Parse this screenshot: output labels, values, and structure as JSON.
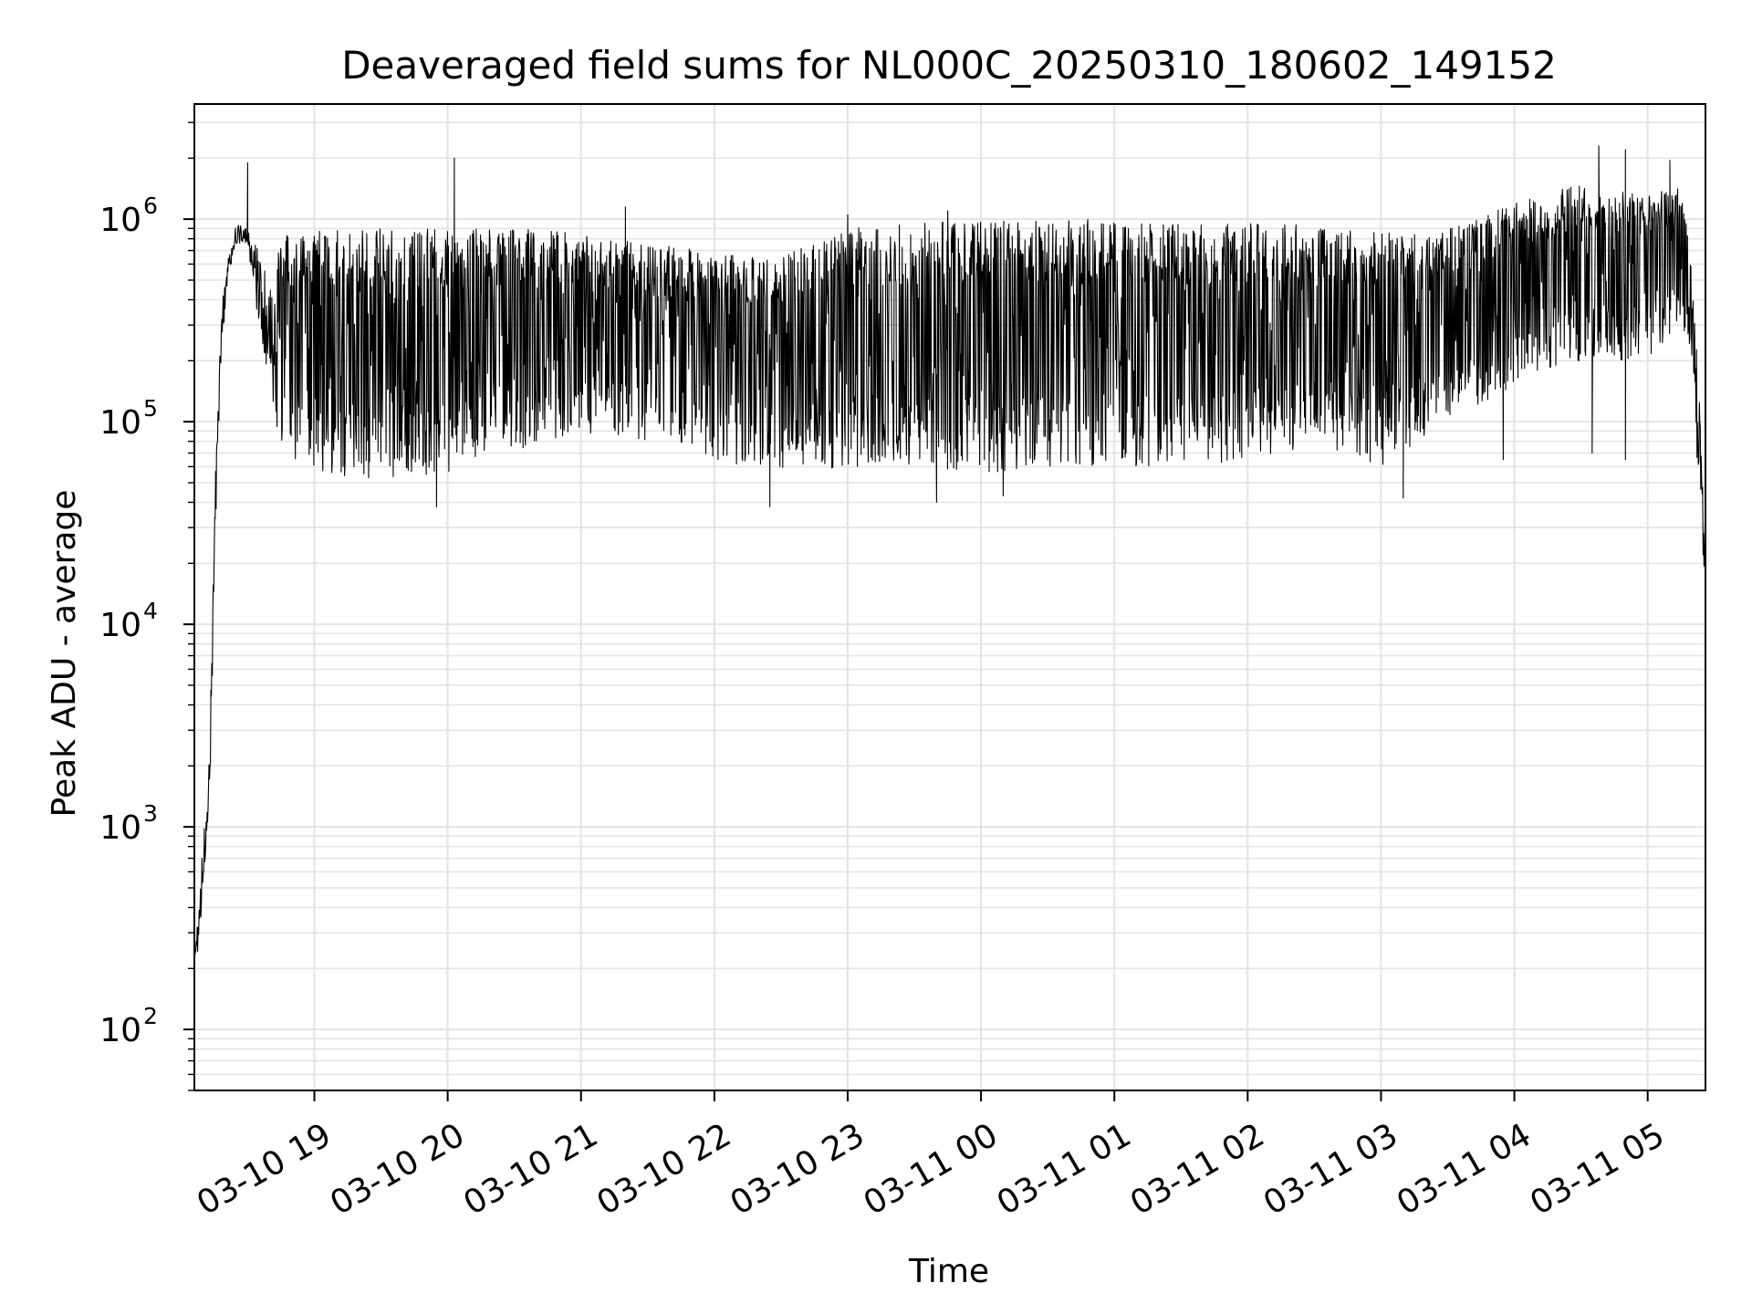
{
  "chart_data": {
    "type": "line",
    "title": "Deaveraged field sums for NL000C_20250310_180602_149152",
    "xlabel": "Time",
    "ylabel": "Peak ADU - average",
    "yscale": "log",
    "ylim": [
      50,
      3700000
    ],
    "xlim": [
      "2025-03-10 18:06",
      "2025-03-11 05:26"
    ],
    "grid": true,
    "grid_color": "#e4e4e4",
    "line_color": "#000000",
    "x_ticks": [
      {
        "value": "2025-03-10 19:00",
        "label": "03-10 19"
      },
      {
        "value": "2025-03-10 20:00",
        "label": "03-10 20"
      },
      {
        "value": "2025-03-10 21:00",
        "label": "03-10 21"
      },
      {
        "value": "2025-03-10 22:00",
        "label": "03-10 22"
      },
      {
        "value": "2025-03-10 23:00",
        "label": "03-10 23"
      },
      {
        "value": "2025-03-11 00:00",
        "label": "03-11 00"
      },
      {
        "value": "2025-03-11 01:00",
        "label": "03-11 01"
      },
      {
        "value": "2025-03-11 02:00",
        "label": "03-11 02"
      },
      {
        "value": "2025-03-11 03:00",
        "label": "03-11 03"
      },
      {
        "value": "2025-03-11 04:00",
        "label": "03-11 04"
      },
      {
        "value": "2025-03-11 05:00",
        "label": "03-11 05"
      }
    ],
    "y_ticks": [
      {
        "value": 100,
        "base": "10",
        "exp": "2"
      },
      {
        "value": 1000,
        "base": "10",
        "exp": "3"
      },
      {
        "value": 10000,
        "base": "10",
        "exp": "4"
      },
      {
        "value": 100000,
        "base": "10",
        "exp": "5"
      },
      {
        "value": 1000000,
        "base": "10",
        "exp": "6"
      }
    ],
    "envelope": [
      {
        "time": "2025-03-10 18:06",
        "low": 180,
        "high": 250
      },
      {
        "time": "2025-03-10 18:08",
        "low": 250,
        "high": 400
      },
      {
        "time": "2025-03-10 18:10",
        "low": 500,
        "high": 900
      },
      {
        "time": "2025-03-10 18:12",
        "low": 900,
        "high": 1400
      },
      {
        "time": "2025-03-10 18:13",
        "low": 1200,
        "high": 3000
      },
      {
        "time": "2025-03-10 18:15",
        "low": 20000,
        "high": 40000
      },
      {
        "time": "2025-03-10 18:18",
        "low": 200000,
        "high": 350000
      },
      {
        "time": "2025-03-10 18:21",
        "low": 500000,
        "high": 650000
      },
      {
        "time": "2025-03-10 18:25",
        "low": 750000,
        "high": 950000
      },
      {
        "time": "2025-03-10 18:30",
        "low": 750000,
        "high": 900000
      },
      {
        "time": "2025-03-10 18:35",
        "low": 300000,
        "high": 700000
      },
      {
        "time": "2025-03-10 18:40",
        "low": 150000,
        "high": 500000
      },
      {
        "time": "2025-03-10 18:45",
        "low": 70000,
        "high": 850000
      },
      {
        "time": "2025-03-10 19:00",
        "low": 55000,
        "high": 880000
      },
      {
        "time": "2025-03-10 19:30",
        "low": 50000,
        "high": 900000
      },
      {
        "time": "2025-03-10 20:00",
        "low": 55000,
        "high": 900000
      },
      {
        "time": "2025-03-10 20:30",
        "low": 70000,
        "high": 900000
      },
      {
        "time": "2025-03-10 21:00",
        "low": 90000,
        "high": 850000
      },
      {
        "time": "2025-03-10 21:30",
        "low": 75000,
        "high": 750000
      },
      {
        "time": "2025-03-10 22:00",
        "low": 65000,
        "high": 700000
      },
      {
        "time": "2025-03-10 22:30",
        "low": 55000,
        "high": 650000
      },
      {
        "time": "2025-03-10 23:00",
        "low": 60000,
        "high": 900000
      },
      {
        "time": "2025-03-10 23:30",
        "low": 60000,
        "high": 950000
      },
      {
        "time": "2025-03-11 00:00",
        "low": 55000,
        "high": 1000000
      },
      {
        "time": "2025-03-11 00:30",
        "low": 60000,
        "high": 1000000
      },
      {
        "time": "2025-03-11 01:00",
        "low": 60000,
        "high": 1000000
      },
      {
        "time": "2025-03-11 01:30",
        "low": 60000,
        "high": 950000
      },
      {
        "time": "2025-03-11 02:00",
        "low": 65000,
        "high": 950000
      },
      {
        "time": "2025-03-11 02:30",
        "low": 75000,
        "high": 950000
      },
      {
        "time": "2025-03-11 03:00",
        "low": 60000,
        "high": 850000
      },
      {
        "time": "2025-03-11 03:30",
        "low": 100000,
        "high": 900000
      },
      {
        "time": "2025-03-11 04:00",
        "low": 150000,
        "high": 1200000
      },
      {
        "time": "2025-03-11 04:30",
        "low": 200000,
        "high": 1500000
      },
      {
        "time": "2025-03-11 05:00",
        "low": 200000,
        "high": 1300000
      },
      {
        "time": "2025-03-11 05:15",
        "low": 300000,
        "high": 1500000
      },
      {
        "time": "2025-03-11 05:20",
        "low": 150000,
        "high": 600000
      },
      {
        "time": "2025-03-11 05:23",
        "low": 40000,
        "high": 150000
      },
      {
        "time": "2025-03-11 05:26",
        "low": 12000,
        "high": 30000
      }
    ],
    "spikes": [
      {
        "time": "2025-03-10 18:30",
        "value": 1900000
      },
      {
        "time": "2025-03-10 20:03",
        "value": 2000000
      },
      {
        "time": "2025-03-10 21:20",
        "value": 1150000
      },
      {
        "time": "2025-03-10 23:00",
        "value": 1050000
      },
      {
        "time": "2025-03-10 23:45",
        "value": 1100000
      },
      {
        "time": "2025-03-11 04:38",
        "value": 2300000
      },
      {
        "time": "2025-03-11 04:50",
        "value": 2200000
      },
      {
        "time": "2025-03-11 05:10",
        "value": 1950000
      }
    ],
    "dips": [
      {
        "time": "2025-03-10 19:55",
        "value": 38000
      },
      {
        "time": "2025-03-10 22:25",
        "value": 38000
      },
      {
        "time": "2025-03-10 23:40",
        "value": 40000
      },
      {
        "time": "2025-03-11 00:10",
        "value": 43000
      },
      {
        "time": "2025-03-11 03:10",
        "value": 42000
      },
      {
        "time": "2025-03-11 03:55",
        "value": 65000
      },
      {
        "time": "2025-03-11 04:35",
        "value": 70000
      },
      {
        "time": "2025-03-11 04:50",
        "value": 65000
      }
    ]
  }
}
